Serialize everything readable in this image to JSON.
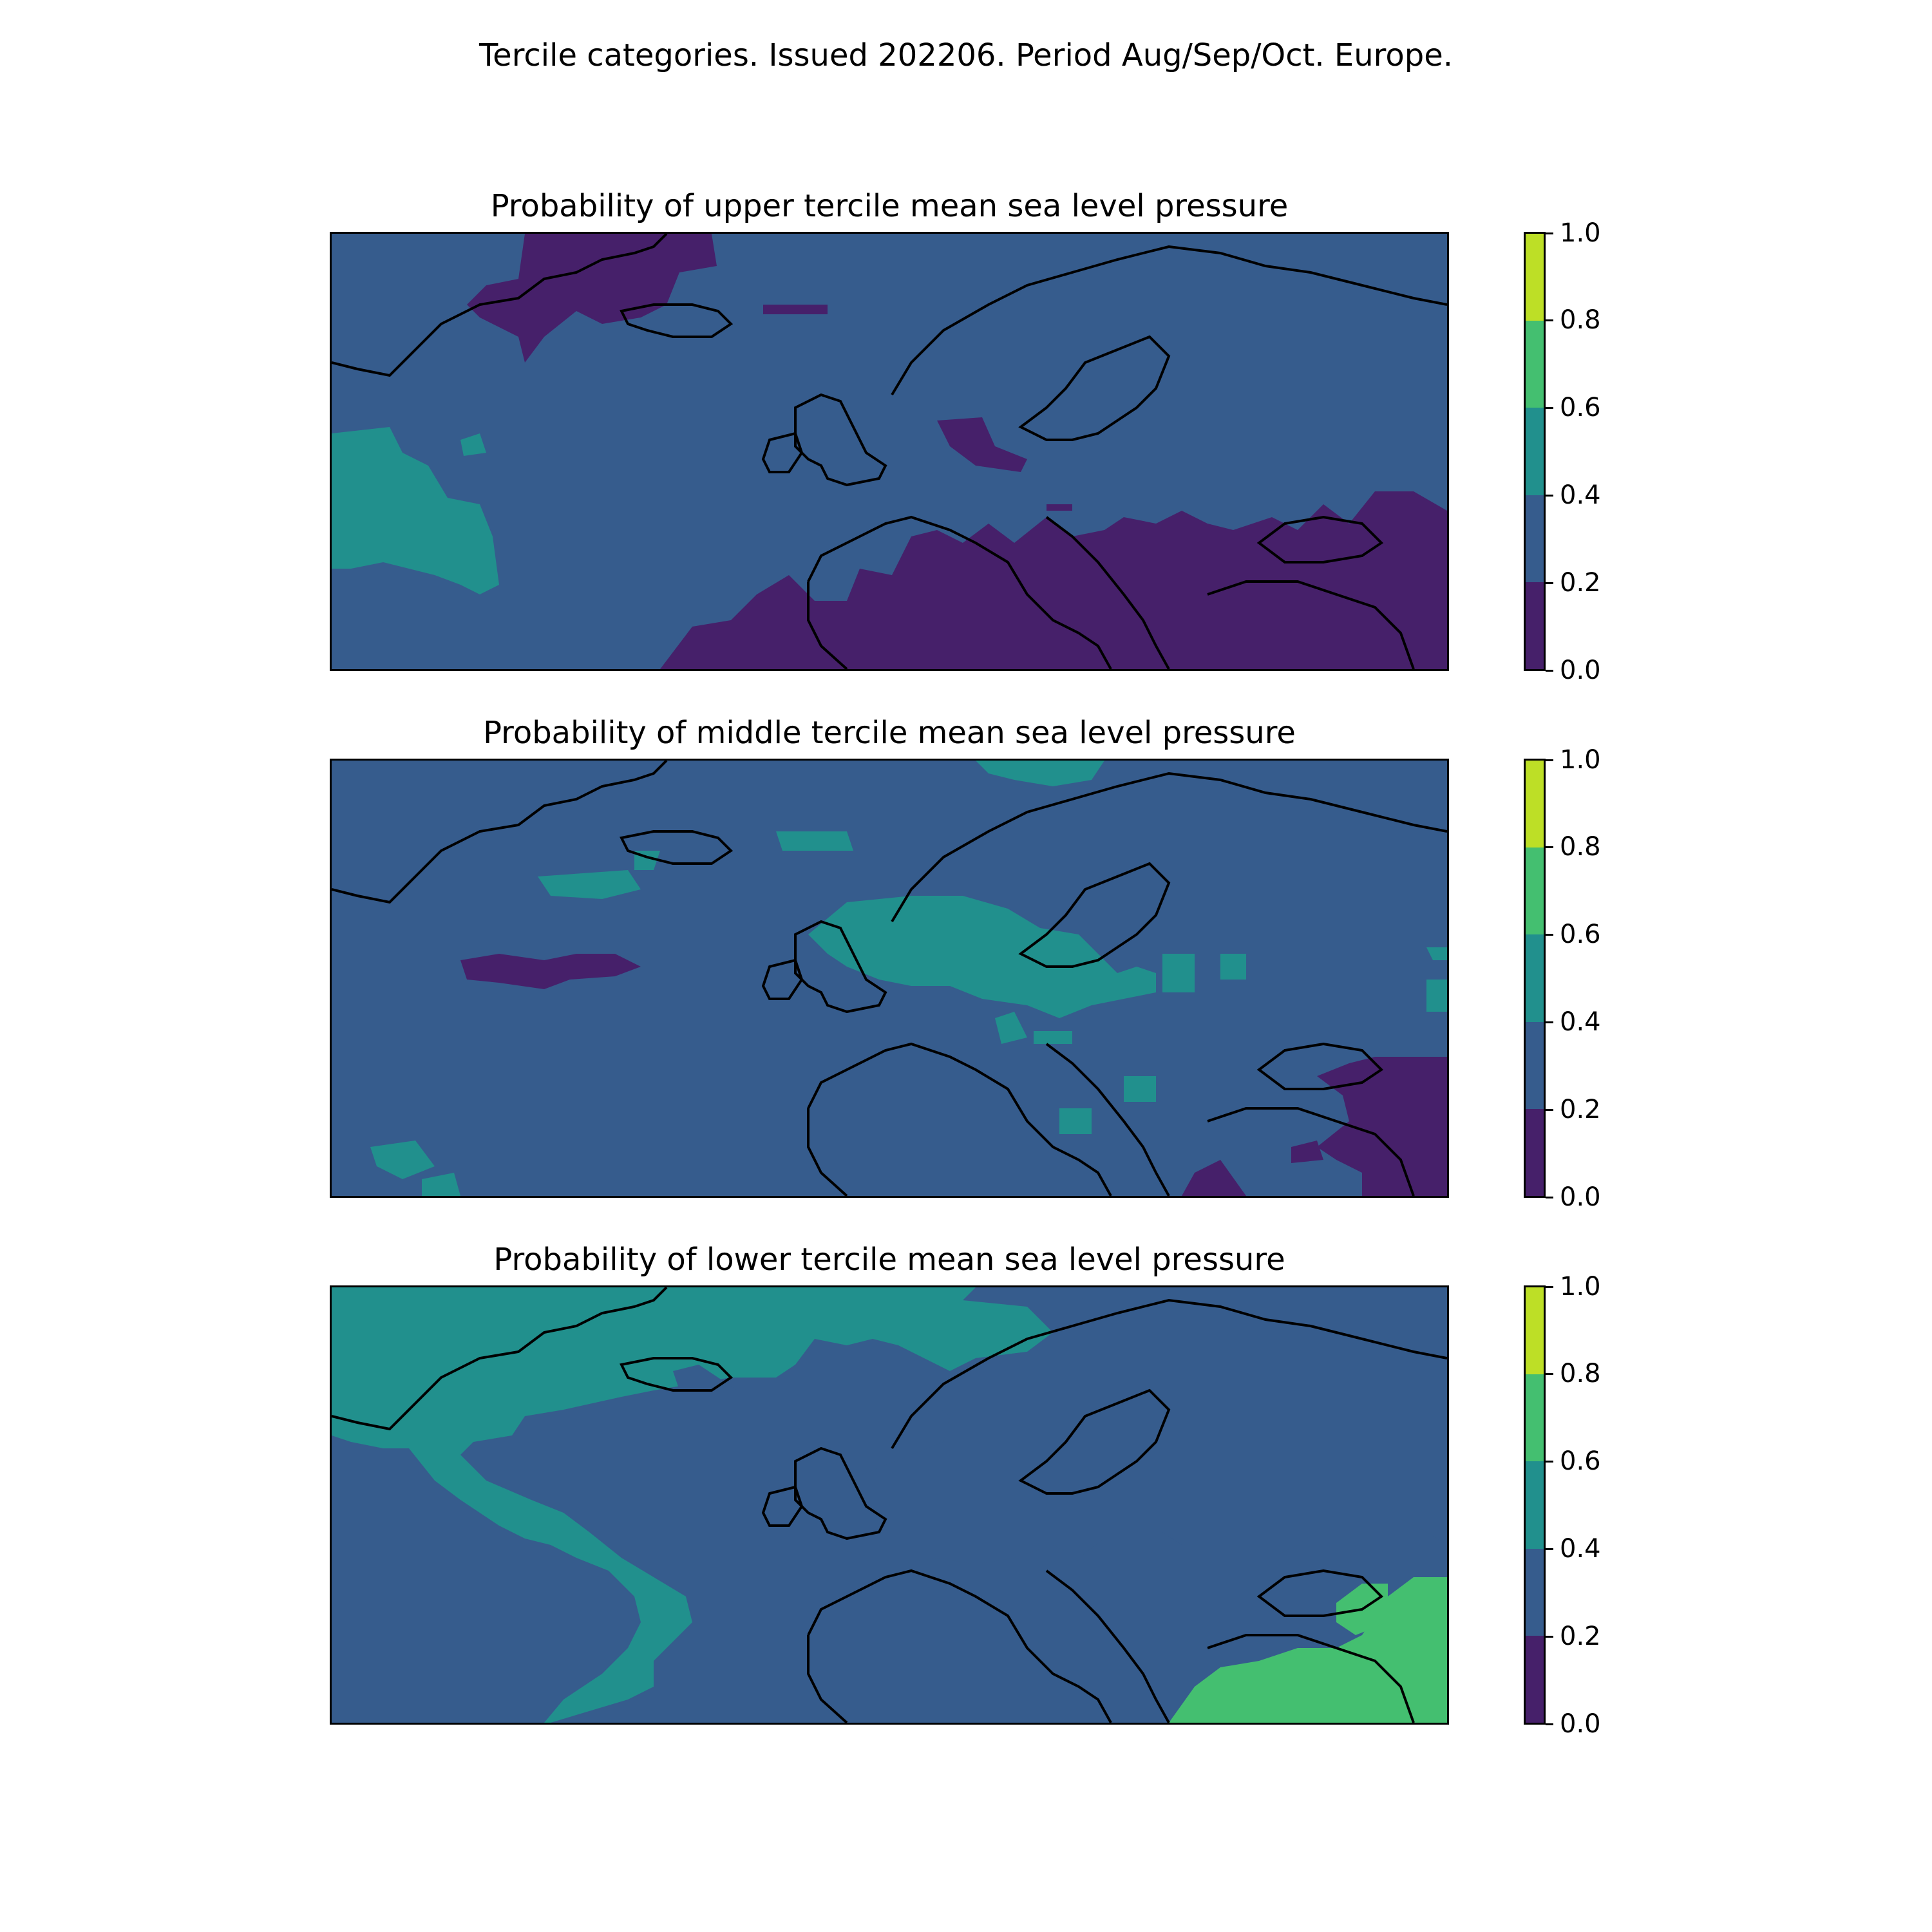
{
  "figure": {
    "suptitle": "Tercile categories. Issued 202206. Period Aug/Sep/Oct. Europe."
  },
  "colorbar": {
    "ticks": [
      "0.0",
      "0.2",
      "0.4",
      "0.6",
      "0.8",
      "1.0"
    ],
    "levels": [
      0.0,
      0.2,
      0.4,
      0.6,
      0.8,
      1.0
    ],
    "colors": [
      "#46206a",
      "#365c8d",
      "#21908d",
      "#44bf70",
      "#bddf26"
    ]
  },
  "panels": [
    {
      "title": "Probability of upper tercile mean sea level pressure",
      "background_level_color": "#365c8d",
      "regions": [
        {
          "area": "southern Greenland to Iceland",
          "color": "#46206a"
        },
        {
          "area": "western Atlantic",
          "color": "#21908d"
        },
        {
          "area": "North Sea / Denmark",
          "color": "#46206a"
        },
        {
          "area": "Mediterranean, Balkans, Black Sea",
          "color": "#46206a"
        }
      ]
    },
    {
      "title": "Probability of middle tercile mean sea level pressure",
      "background_level_color": "#365c8d",
      "regions": [
        {
          "area": "British Isles to southern Scandinavia",
          "color": "#21908d"
        },
        {
          "area": "mid Atlantic",
          "color": "#46206a"
        },
        {
          "area": "Caucasus / eastern Black Sea",
          "color": "#46206a"
        },
        {
          "area": "south of Iceland",
          "color": "#21908d"
        }
      ]
    },
    {
      "title": "Probability of lower tercile mean sea level pressure",
      "background_level_color": "#365c8d",
      "regions": [
        {
          "area": "Greenland, Iceland, North Atlantic",
          "color": "#21908d"
        },
        {
          "area": "Iberia, Mediterranean, central Europe",
          "color": "#21908d"
        },
        {
          "area": "Turkey / eastern Mediterranean",
          "color": "#44bf70"
        }
      ]
    }
  ]
}
